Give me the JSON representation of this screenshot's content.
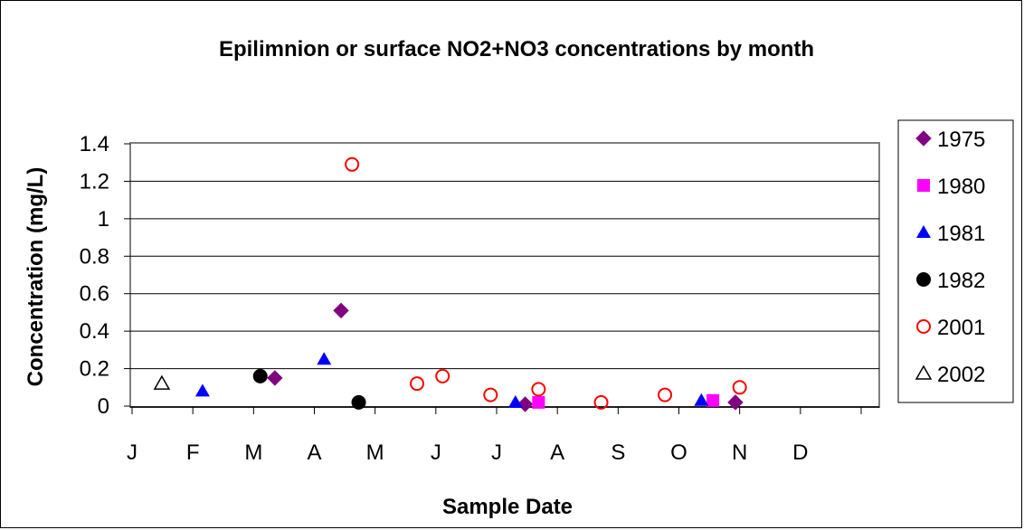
{
  "chart_data": {
    "type": "scatter",
    "title": "Epilimnion or surface NO2+NO3 concentrations by month",
    "xlabel": "Sample Date",
    "ylabel": "Concentration (mg/L)",
    "x_ticks": [
      "J",
      "F",
      "M",
      "A",
      "M",
      "J",
      "J",
      "A",
      "S",
      "O",
      "N",
      "D"
    ],
    "x_unit": "month (1 = Jan, 13 = end of Dec)",
    "xlim": [
      1,
      12
    ],
    "y_ticks": [
      "0",
      "0.2",
      "0.4",
      "0.6",
      "0.8",
      "1",
      "1.2",
      "1.4"
    ],
    "ylim": [
      0,
      1.4
    ],
    "grid": "horizontal",
    "legend_position": "right",
    "series": [
      {
        "name": "1975",
        "marker": "diamond",
        "color": "#800080",
        "points": [
          {
            "x": 3.35,
            "y": 0.15
          },
          {
            "x": 4.44,
            "y": 0.51
          },
          {
            "x": 7.47,
            "y": 0.01
          },
          {
            "x": 10.93,
            "y": 0.02
          }
        ]
      },
      {
        "name": "1980",
        "marker": "square",
        "color": "#ff00ff",
        "points": [
          {
            "x": 7.69,
            "y": 0.02
          },
          {
            "x": 10.56,
            "y": 0.03
          }
        ]
      },
      {
        "name": "1981",
        "marker": "triangle",
        "color": "#0000ff",
        "points": [
          {
            "x": 2.16,
            "y": 0.08
          },
          {
            "x": 4.16,
            "y": 0.25
          },
          {
            "x": 7.31,
            "y": 0.02
          },
          {
            "x": 10.37,
            "y": 0.03
          }
        ]
      },
      {
        "name": "1982",
        "marker": "circle",
        "color": "#000000",
        "points": [
          {
            "x": 3.11,
            "y": 0.16
          },
          {
            "x": 4.73,
            "y": 0.02
          }
        ]
      },
      {
        "name": "2001",
        "marker": "open-circle",
        "color": "#ff0000",
        "points": [
          {
            "x": 4.62,
            "y": 1.29
          },
          {
            "x": 5.69,
            "y": 0.12
          },
          {
            "x": 6.11,
            "y": 0.16
          },
          {
            "x": 6.9,
            "y": 0.06
          },
          {
            "x": 7.69,
            "y": 0.09
          },
          {
            "x": 8.72,
            "y": 0.02
          },
          {
            "x": 9.77,
            "y": 0.06
          },
          {
            "x": 11.0,
            "y": 0.1
          }
        ]
      },
      {
        "name": "2002",
        "marker": "open-triangle",
        "color": "#000000",
        "points": [
          {
            "x": 1.49,
            "y": 0.12
          }
        ]
      }
    ]
  }
}
